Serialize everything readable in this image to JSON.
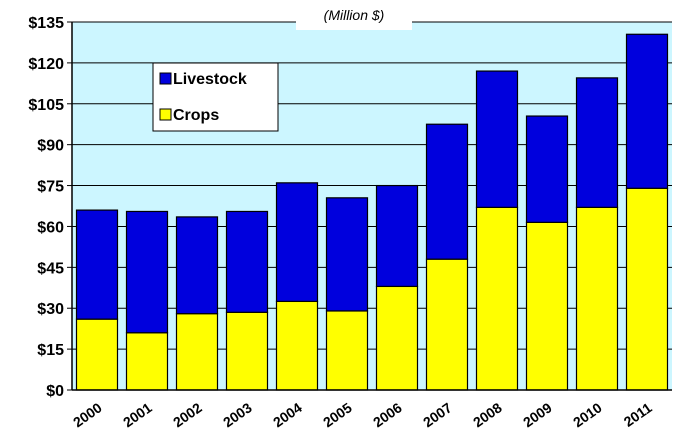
{
  "chart_data": {
    "type": "bar",
    "stacked": true,
    "subtitle": "(Million $)",
    "categories": [
      "2000",
      "2001",
      "2002",
      "2003",
      "2004",
      "2005",
      "2006",
      "2007",
      "2008",
      "2009",
      "2010",
      "2011"
    ],
    "series": [
      {
        "name": "Crops",
        "color": "#ffff00",
        "values": [
          26,
          21,
          28,
          28.5,
          32.5,
          29,
          38,
          48,
          67,
          61.5,
          67,
          74
        ]
      },
      {
        "name": "Livestock",
        "color": "#0000dd",
        "values": [
          40,
          44.5,
          35.5,
          37,
          43.5,
          41.5,
          37,
          49.5,
          50,
          39,
          47.5,
          56.5
        ]
      }
    ],
    "ylim": [
      0,
      135
    ],
    "yticks": [
      "$0",
      "$15",
      "$30",
      "$45",
      "$60",
      "$75",
      "$90",
      "$105",
      "$120",
      "$135"
    ],
    "ytick_values": [
      0,
      15,
      30,
      45,
      60,
      75,
      90,
      105,
      120,
      135
    ],
    "grid": true,
    "plot_background": "#ccf6ff",
    "legend": {
      "position": "top-left",
      "entries": [
        "Livestock",
        "Crops"
      ]
    }
  }
}
